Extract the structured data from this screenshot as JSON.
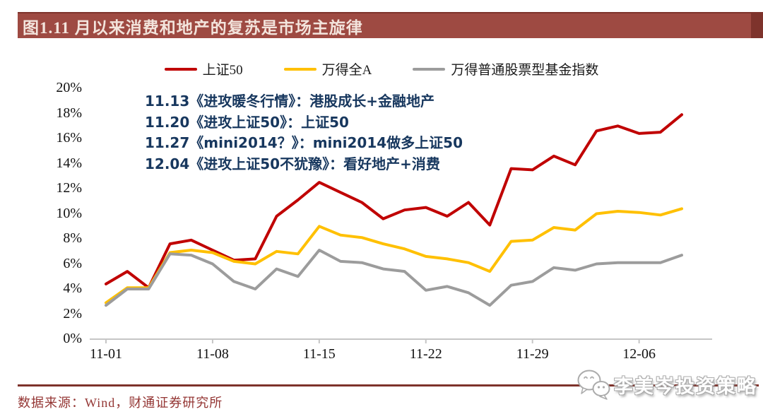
{
  "header": {
    "title": "图1.11 月以来消费和地产的复苏是市场主旋律",
    "bar_color": "#9E4A42",
    "bar_edge_color": "#7E332C"
  },
  "annotations": {
    "color": "#17375E",
    "lines": [
      "11.13《进攻暖冬行情》：港股成长+金融地产",
      "11.20《进攻上证50》：上证50",
      "11.27《mini2014？》：mini2014做多上证50",
      "12.04《进攻上证50不犹豫》：看好地产+消费"
    ]
  },
  "chart_data": {
    "type": "line",
    "title": "",
    "xlabel": "",
    "ylabel": "",
    "grid": false,
    "legend_position": "top",
    "ylim": [
      0,
      20
    ],
    "ytick_step": 2,
    "yticks": [
      "0%",
      "2%",
      "4%",
      "6%",
      "8%",
      "10%",
      "12%",
      "14%",
      "16%",
      "18%",
      "20%"
    ],
    "xticks": [
      "11-01",
      "11-08",
      "11-15",
      "11-22",
      "11-29",
      "12-06"
    ],
    "xtick_positions": [
      0,
      5,
      10,
      15,
      20,
      25
    ],
    "x": [
      "11-01",
      "11-02",
      "11-03",
      "11-06",
      "11-07",
      "11-08",
      "11-09",
      "11-10",
      "11-13",
      "11-14",
      "11-15",
      "11-16",
      "11-17",
      "11-20",
      "11-21",
      "11-22",
      "11-23",
      "11-24",
      "11-27",
      "11-28",
      "11-29",
      "11-30",
      "12-01",
      "12-04",
      "12-05",
      "12-06",
      "12-07",
      "12-08"
    ],
    "series": [
      {
        "name": "上证50",
        "color": "#C00000",
        "values": [
          4.4,
          5.4,
          4.1,
          7.6,
          7.9,
          7.1,
          6.3,
          6.4,
          9.8,
          11.1,
          12.5,
          11.7,
          10.9,
          9.6,
          10.3,
          10.5,
          9.8,
          10.9,
          9.1,
          13.6,
          13.5,
          14.6,
          13.9,
          16.6,
          17.0,
          16.4,
          16.5,
          17.9
        ]
      },
      {
        "name": "万得全A",
        "color": "#FFC000",
        "values": [
          2.9,
          4.1,
          4.1,
          6.9,
          7.1,
          6.9,
          6.2,
          6.0,
          7.0,
          6.8,
          9.0,
          8.3,
          8.1,
          7.6,
          7.2,
          6.6,
          6.4,
          6.1,
          5.4,
          7.8,
          7.9,
          8.9,
          8.7,
          10.0,
          10.2,
          10.1,
          9.9,
          10.4
        ]
      },
      {
        "name": "万得普通股票型基金指数",
        "color": "#9C9C9C",
        "values": [
          2.7,
          4.0,
          4.0,
          6.8,
          6.7,
          6.0,
          4.6,
          4.0,
          5.6,
          5.0,
          7.1,
          6.2,
          6.1,
          5.6,
          5.4,
          3.9,
          4.2,
          3.7,
          2.7,
          4.3,
          4.6,
          5.7,
          5.5,
          6.0,
          6.1,
          6.1,
          6.1,
          6.7
        ]
      }
    ],
    "axis_color": "#C6C6C6"
  },
  "footer": {
    "source": "数据来源：Wind，财通证券研究所",
    "watermark": "李美岑投资策略",
    "watermark_icon": "wechat-chat-bubbles-icon",
    "divider_color": "#7E322B"
  }
}
